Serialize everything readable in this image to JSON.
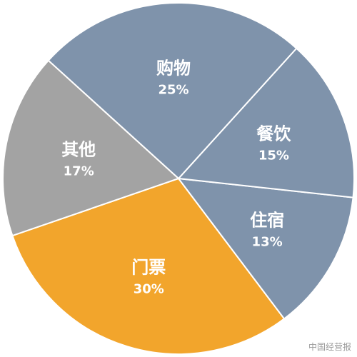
{
  "chart_data": {
    "type": "pie",
    "start_angle_deg": 199,
    "direction": "counterclockwise",
    "slices": [
      {
        "label": "门票",
        "value": 30,
        "pct_label": "30%",
        "color": "#F2A52C"
      },
      {
        "label": "住宿",
        "value": 13,
        "pct_label": "13%",
        "color": "#7F93AB"
      },
      {
        "label": "餐饮",
        "value": 15,
        "pct_label": "15%",
        "color": "#7F93AB"
      },
      {
        "label": "购物",
        "value": 25,
        "pct_label": "25%",
        "color": "#7F93AB"
      },
      {
        "label": "其他",
        "value": 17,
        "pct_label": "17%",
        "color": "#A3A3A3"
      }
    ],
    "stroke_color": "#ffffff"
  },
  "watermark": "中国经营报"
}
